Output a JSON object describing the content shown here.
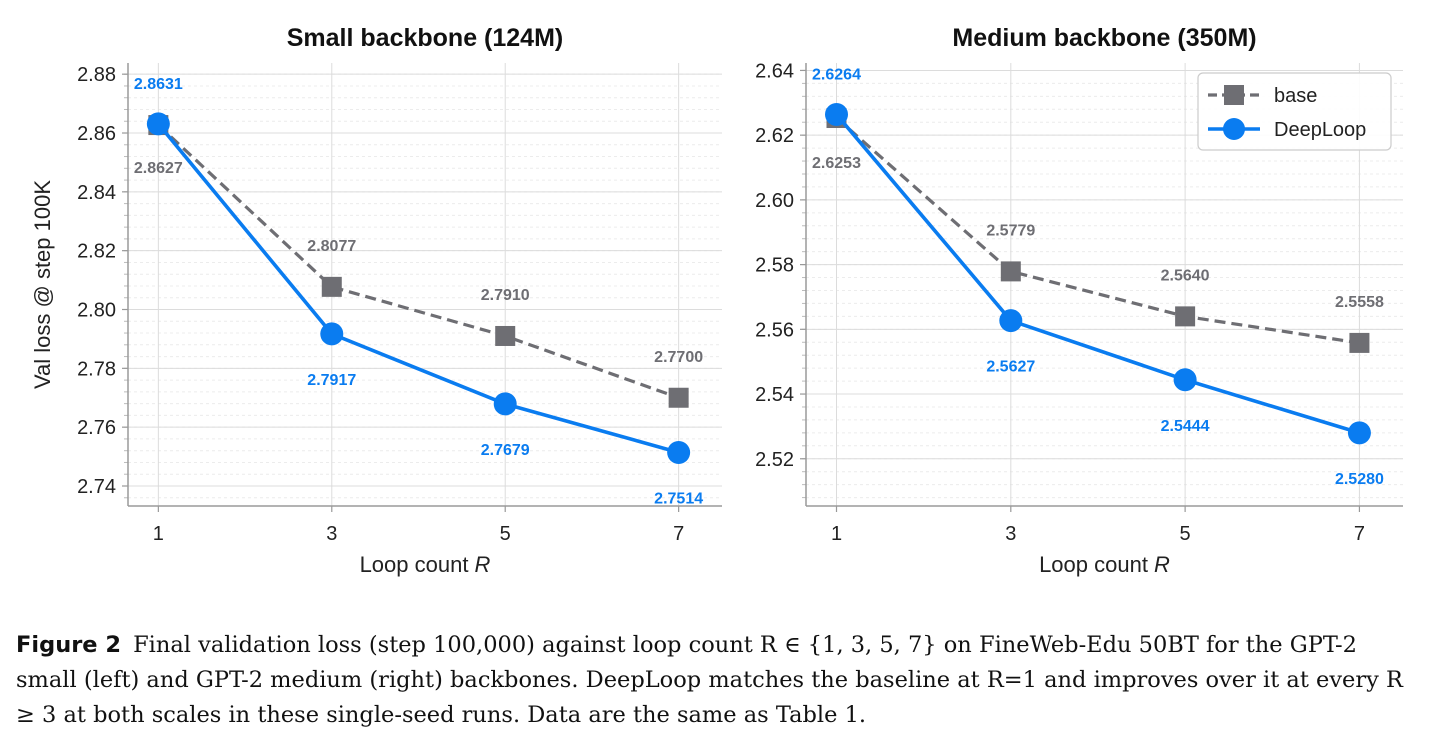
{
  "chart_data": [
    {
      "type": "line",
      "title": "Small backbone (124M)",
      "xlabel": "Loop count",
      "xlabel_var": "R",
      "ylabel": "Val loss @ step 100K",
      "x": [
        1,
        3,
        5,
        7
      ],
      "xlim": [
        0.65,
        7.5
      ],
      "ylim": [
        2.7332,
        2.8838
      ],
      "yticks": [
        2.74,
        2.76,
        2.78,
        2.8,
        2.82,
        2.84,
        2.86,
        2.88
      ],
      "grid": true,
      "legend": "none",
      "series": [
        {
          "name": "base",
          "values": [
            2.8627,
            2.8077,
            2.791,
            2.77
          ],
          "labels": [
            "2.8627",
            "2.8077",
            "2.7910",
            "2.7700"
          ],
          "color": "#6e6e73",
          "style": "dashed",
          "marker": "square"
        },
        {
          "name": "DeepLoop",
          "values": [
            2.8631,
            2.7917,
            2.7679,
            2.7514
          ],
          "labels": [
            "2.8631",
            "2.7917",
            "2.7679",
            "2.7514"
          ],
          "color": "#0a7cf0",
          "style": "solid",
          "marker": "circle"
        }
      ]
    },
    {
      "type": "line",
      "title": "Medium backbone (350M)",
      "xlabel": "Loop count",
      "xlabel_var": "R",
      "ylabel": "",
      "x": [
        1,
        3,
        5,
        7
      ],
      "xlim": [
        0.65,
        7.5
      ],
      "ylim": [
        2.5054,
        2.6423
      ],
      "yticks": [
        2.52,
        2.54,
        2.56,
        2.58,
        2.6,
        2.62,
        2.64
      ],
      "grid": true,
      "legend": "top-right",
      "series": [
        {
          "name": "base",
          "values": [
            2.6253,
            2.5779,
            2.564,
            2.5558
          ],
          "labels": [
            "2.6253",
            "2.5779",
            "2.5640",
            "2.5558"
          ],
          "color": "#6e6e73",
          "style": "dashed",
          "marker": "square"
        },
        {
          "name": "DeepLoop",
          "values": [
            2.6264,
            2.5627,
            2.5444,
            2.528
          ],
          "labels": [
            "2.6264",
            "2.5627",
            "2.5444",
            "2.5280"
          ],
          "color": "#0a7cf0",
          "style": "solid",
          "marker": "circle"
        }
      ]
    }
  ],
  "caption": {
    "label": "Figure 2",
    "text": "Final validation loss (step 100,000) against loop count R ∈ {1, 3, 5, 7} on FineWeb-Edu 50BT for the GPT-2 small (left) and GPT-2 medium (right) backbones. DeepLoop matches the baseline at R=1 and improves over it at every R ≥ 3 at both scales in these single-seed runs. Data are the same as Table 1."
  }
}
